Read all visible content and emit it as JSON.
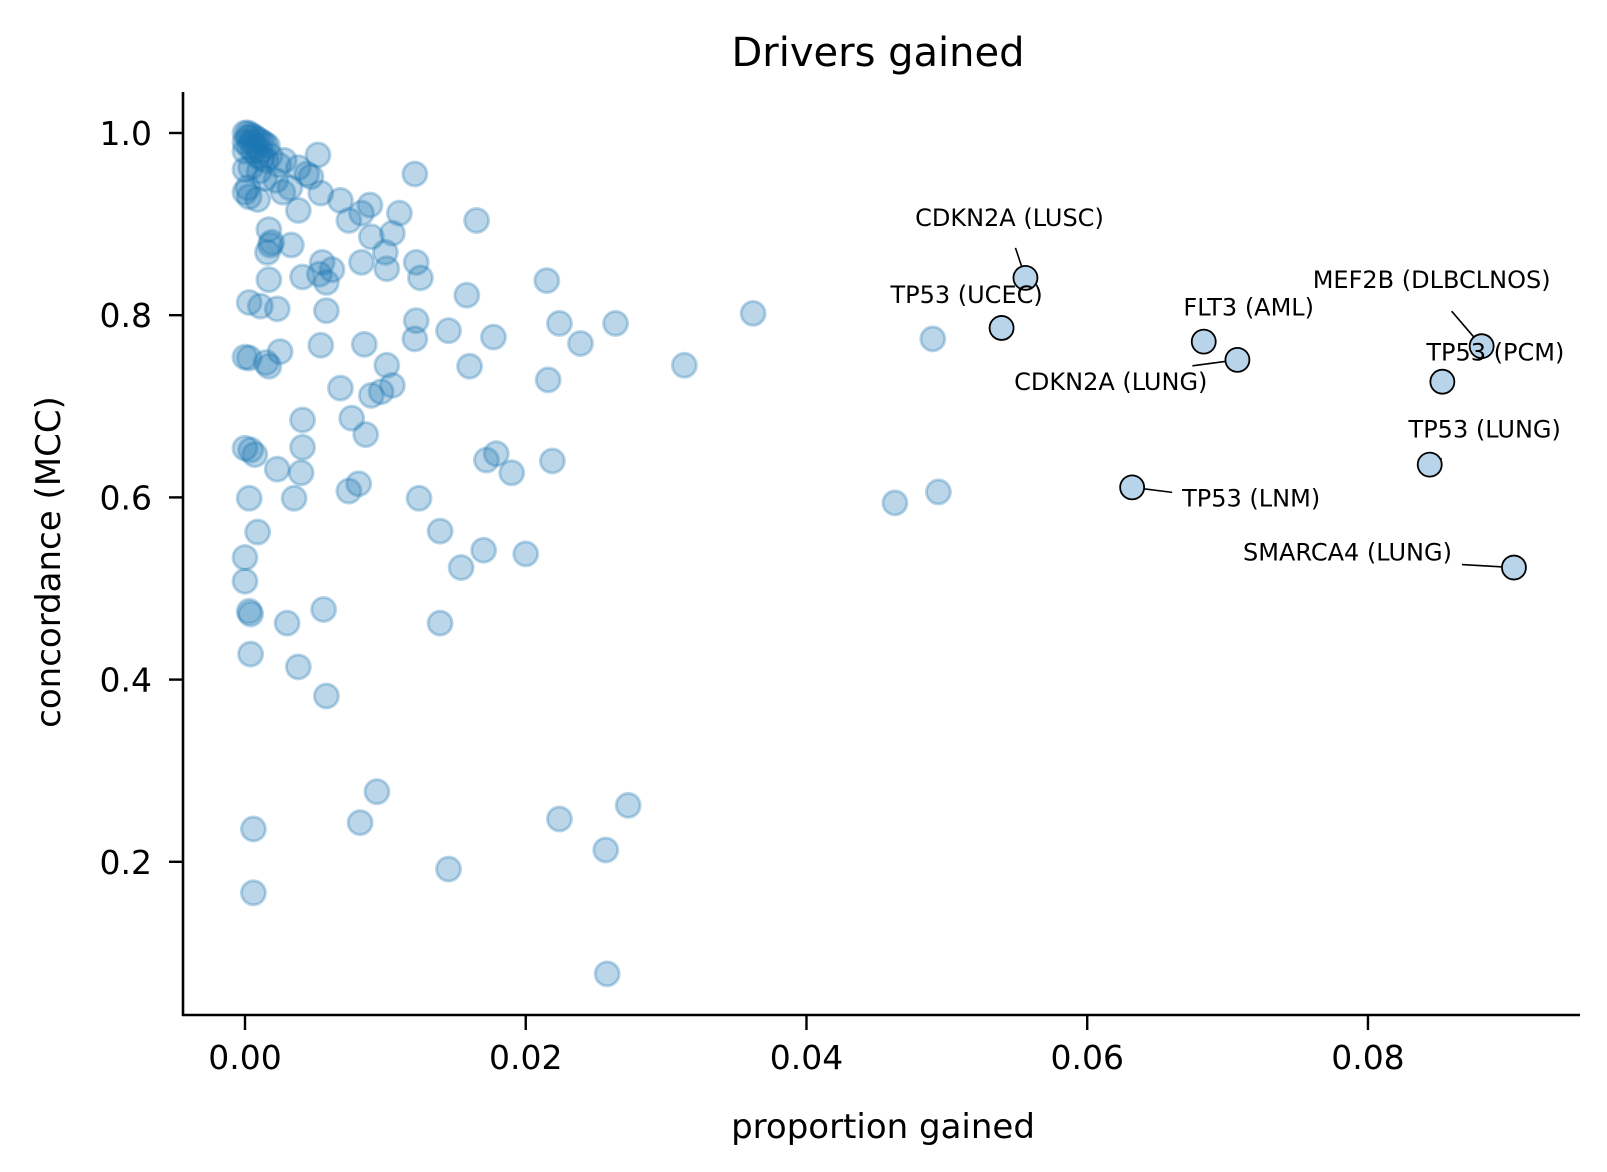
{
  "chart_data": {
    "type": "scatter",
    "title": "Drivers gained",
    "xlabel": "proportion gained",
    "ylabel": "concordance (MCC)",
    "xlim": [
      -0.0044,
      0.095
    ],
    "ylim": [
      0.032,
      1.045
    ],
    "xticks": [
      0.0,
      0.02,
      0.04,
      0.06,
      0.08
    ],
    "xtick_labels": [
      "0.00",
      "0.02",
      "0.04",
      "0.06",
      "0.08"
    ],
    "yticks": [
      0.2,
      0.4,
      0.6,
      0.8,
      1.0
    ],
    "ytick_labels": [
      "0.2",
      "0.4",
      "0.6",
      "0.8",
      "1.0"
    ],
    "grid": false,
    "colors": {
      "point": "#1f77b4",
      "highlight_fill": "#b8d4ea",
      "highlight_edge": "#000000"
    },
    "points": [
      [
        0.0,
        1.0
      ],
      [
        0.0002,
        1.0
      ],
      [
        0.0004,
        0.998
      ],
      [
        0.0006,
        0.996
      ],
      [
        0.0008,
        0.994
      ],
      [
        0.001,
        0.992
      ],
      [
        0.0012,
        0.99
      ],
      [
        0.0014,
        0.988
      ],
      [
        0.0016,
        0.986
      ],
      [
        0.0002,
        0.995
      ],
      [
        0.0005,
        0.99
      ],
      [
        0.0008,
        0.985
      ],
      [
        0.0011,
        0.98
      ],
      [
        0.0,
        0.99
      ],
      [
        0.0003,
        0.985
      ],
      [
        0.0006,
        0.98
      ],
      [
        0.0009,
        0.975
      ],
      [
        0.0012,
        0.972
      ],
      [
        0.0015,
        0.97
      ],
      [
        0.0,
        0.98
      ],
      [
        0.0,
        0.96
      ],
      [
        0.0004,
        0.962
      ],
      [
        0.0002,
        0.94
      ],
      [
        0.0,
        0.935
      ],
      [
        0.0003,
        0.93
      ],
      [
        0.001,
        0.958
      ],
      [
        0.0018,
        0.975
      ],
      [
        0.0024,
        0.965
      ],
      [
        0.0028,
        0.97
      ],
      [
        0.0014,
        0.95
      ],
      [
        0.0022,
        0.948
      ],
      [
        0.0032,
        0.94
      ],
      [
        0.0027,
        0.935
      ],
      [
        0.0009,
        0.927
      ],
      [
        0.0038,
        0.962
      ],
      [
        0.0044,
        0.955
      ],
      [
        0.0047,
        0.952
      ],
      [
        0.0052,
        0.976
      ],
      [
        0.0054,
        0.934
      ],
      [
        0.0038,
        0.915
      ],
      [
        0.0068,
        0.926
      ],
      [
        0.0074,
        0.904
      ],
      [
        0.0083,
        0.912
      ],
      [
        0.0089,
        0.921
      ],
      [
        0.011,
        0.912
      ],
      [
        0.009,
        0.886
      ],
      [
        0.0105,
        0.89
      ],
      [
        0.0121,
        0.955
      ],
      [
        0.0165,
        0.904
      ],
      [
        0.0017,
        0.894
      ],
      [
        0.0018,
        0.877
      ],
      [
        0.0016,
        0.869
      ],
      [
        0.0019,
        0.88
      ],
      [
        0.0033,
        0.877
      ],
      [
        0.0017,
        0.839
      ],
      [
        0.0041,
        0.842
      ],
      [
        0.0053,
        0.845
      ],
      [
        0.0058,
        0.836
      ],
      [
        0.0062,
        0.85
      ],
      [
        0.0055,
        0.858
      ],
      [
        0.01,
        0.869
      ],
      [
        0.0101,
        0.851
      ],
      [
        0.0083,
        0.858
      ],
      [
        0.0122,
        0.858
      ],
      [
        0.0125,
        0.841
      ],
      [
        0.0158,
        0.822
      ],
      [
        0.0003,
        0.814
      ],
      [
        0.0011,
        0.81
      ],
      [
        0.0023,
        0.807
      ],
      [
        0.0058,
        0.805
      ],
      [
        0.0215,
        0.838
      ],
      [
        0.0224,
        0.791
      ],
      [
        0.0239,
        0.769
      ],
      [
        0.0264,
        0.791
      ],
      [
        0.0362,
        0.802
      ],
      [
        0.0313,
        0.745
      ],
      [
        0.0177,
        0.776
      ],
      [
        0.0145,
        0.783
      ],
      [
        0.016,
        0.744
      ],
      [
        0.0216,
        0.729
      ],
      [
        0.0,
        0.754
      ],
      [
        0.0003,
        0.753
      ],
      [
        0.0015,
        0.748
      ],
      [
        0.0017,
        0.744
      ],
      [
        0.0025,
        0.76
      ],
      [
        0.0054,
        0.767
      ],
      [
        0.0085,
        0.768
      ],
      [
        0.0101,
        0.745
      ],
      [
        0.0121,
        0.774
      ],
      [
        0.0122,
        0.794
      ],
      [
        0.0068,
        0.72
      ],
      [
        0.009,
        0.712
      ],
      [
        0.0097,
        0.716
      ],
      [
        0.0105,
        0.723
      ],
      [
        0.0041,
        0.685
      ],
      [
        0.0076,
        0.687
      ],
      [
        0.0086,
        0.669
      ],
      [
        0.0,
        0.654
      ],
      [
        0.0004,
        0.652
      ],
      [
        0.0007,
        0.647
      ],
      [
        0.0023,
        0.631
      ],
      [
        0.0041,
        0.655
      ],
      [
        0.004,
        0.627
      ],
      [
        0.0074,
        0.607
      ],
      [
        0.0081,
        0.615
      ],
      [
        0.0172,
        0.641
      ],
      [
        0.0179,
        0.648
      ],
      [
        0.019,
        0.627
      ],
      [
        0.0219,
        0.64
      ],
      [
        0.0003,
        0.599
      ],
      [
        0.0035,
        0.599
      ],
      [
        0.0124,
        0.599
      ],
      [
        0.0009,
        0.562
      ],
      [
        0.0,
        0.534
      ],
      [
        0.0,
        0.508
      ],
      [
        0.0003,
        0.475
      ],
      [
        0.0004,
        0.472
      ],
      [
        0.003,
        0.462
      ],
      [
        0.0056,
        0.477
      ],
      [
        0.0139,
        0.462
      ],
      [
        0.0139,
        0.563
      ],
      [
        0.0154,
        0.523
      ],
      [
        0.017,
        0.542
      ],
      [
        0.02,
        0.538
      ],
      [
        0.0004,
        0.428
      ],
      [
        0.0038,
        0.414
      ],
      [
        0.0058,
        0.382
      ],
      [
        0.0006,
        0.236
      ],
      [
        0.0006,
        0.166
      ],
      [
        0.0082,
        0.243
      ],
      [
        0.0094,
        0.277
      ],
      [
        0.0145,
        0.192
      ],
      [
        0.0224,
        0.247
      ],
      [
        0.0257,
        0.213
      ],
      [
        0.0273,
        0.262
      ],
      [
        0.0258,
        0.077
      ],
      [
        0.049,
        0.774
      ],
      [
        0.0463,
        0.594
      ],
      [
        0.0494,
        0.606
      ]
    ],
    "highlighted": [
      {
        "label": "CDKN2A (LUSC)",
        "x": 0.0556,
        "y": 0.841
      },
      {
        "label": "TP53 (UCEC)",
        "x": 0.0539,
        "y": 0.786
      },
      {
        "label": "FLT3 (AML)",
        "x": 0.0683,
        "y": 0.771
      },
      {
        "label": "CDKN2A (LUNG)",
        "x": 0.0707,
        "y": 0.751
      },
      {
        "label": "MEF2B (DLBCLNOS)",
        "x": 0.0881,
        "y": 0.766
      },
      {
        "label": "TP53 (PCM)",
        "x": 0.0853,
        "y": 0.727
      },
      {
        "label": "TP53 (LUNG)",
        "x": 0.0844,
        "y": 0.636
      },
      {
        "label": "TP53 (LNM)",
        "x": 0.0632,
        "y": 0.611
      },
      {
        "label": "SMARCA4 (LUNG)",
        "x": 0.0904,
        "y": 0.523
      }
    ]
  }
}
